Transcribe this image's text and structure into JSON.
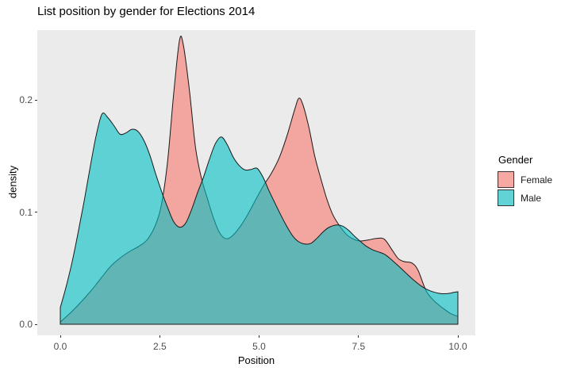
{
  "title": "List position by gender for Elections 2014",
  "chart_data": {
    "type": "area",
    "subtype": "overlapping-density",
    "title": "List position by gender for Elections 2014",
    "xlabel": "Position",
    "ylabel": "density",
    "xlim": [
      0,
      10
    ],
    "ylim": [
      0,
      0.262
    ],
    "grid": false,
    "panel_background": "#EBEBEB",
    "outline_color": "#1a1a1a",
    "fill_alpha": 0.6,
    "legend_position": "right",
    "legend_title": "Gender",
    "x_ticks": {
      "values": [
        0,
        2.5,
        5,
        7.5,
        10
      ],
      "labels": [
        "0.0",
        "2.5",
        "5.0",
        "7.5",
        "10.0"
      ]
    },
    "y_ticks": {
      "values": [
        0,
        0.1,
        0.2
      ],
      "labels": [
        "0.0",
        "0.1",
        "0.2"
      ]
    },
    "series": [
      {
        "name": "Female",
        "color": "#F8766D",
        "points": [
          [
            0,
            0.002
          ],
          [
            0.25,
            0.01
          ],
          [
            0.5,
            0.019
          ],
          [
            0.75,
            0.029
          ],
          [
            1.0,
            0.04
          ],
          [
            1.25,
            0.051
          ],
          [
            1.5,
            0.059
          ],
          [
            1.75,
            0.065
          ],
          [
            2.0,
            0.07
          ],
          [
            2.2,
            0.076
          ],
          [
            2.4,
            0.089
          ],
          [
            2.55,
            0.108
          ],
          [
            2.7,
            0.146
          ],
          [
            2.85,
            0.205
          ],
          [
            3.0,
            0.2535
          ],
          [
            3.1,
            0.248
          ],
          [
            3.25,
            0.208
          ],
          [
            3.4,
            0.158
          ],
          [
            3.55,
            0.13
          ],
          [
            3.7,
            0.112
          ],
          [
            3.85,
            0.095
          ],
          [
            4.0,
            0.082
          ],
          [
            4.15,
            0.0765
          ],
          [
            4.3,
            0.078
          ],
          [
            4.5,
            0.086
          ],
          [
            4.7,
            0.097
          ],
          [
            4.9,
            0.11
          ],
          [
            5.1,
            0.123
          ],
          [
            5.3,
            0.134
          ],
          [
            5.5,
            0.148
          ],
          [
            5.7,
            0.168
          ],
          [
            5.9,
            0.192
          ],
          [
            6.0,
            0.2015
          ],
          [
            6.1,
            0.196
          ],
          [
            6.25,
            0.176
          ],
          [
            6.4,
            0.15
          ],
          [
            6.55,
            0.13
          ],
          [
            6.7,
            0.112
          ],
          [
            6.85,
            0.098
          ],
          [
            7.0,
            0.089
          ],
          [
            7.2,
            0.08
          ],
          [
            7.4,
            0.0755
          ],
          [
            7.55,
            0.0742
          ],
          [
            7.75,
            0.0752
          ],
          [
            7.95,
            0.0765
          ],
          [
            8.15,
            0.0758
          ],
          [
            8.35,
            0.066
          ],
          [
            8.5,
            0.0585
          ],
          [
            8.65,
            0.0558
          ],
          [
            8.85,
            0.0545
          ],
          [
            9.0,
            0.048
          ],
          [
            9.2,
            0.03
          ],
          [
            9.4,
            0.021
          ],
          [
            9.6,
            0.015
          ],
          [
            9.8,
            0.01
          ],
          [
            10,
            0.007
          ]
        ]
      },
      {
        "name": "Male",
        "color": "#00BFC4",
        "points": [
          [
            0,
            0.015
          ],
          [
            0.15,
            0.034
          ],
          [
            0.3,
            0.056
          ],
          [
            0.45,
            0.082
          ],
          [
            0.6,
            0.11
          ],
          [
            0.75,
            0.14
          ],
          [
            0.9,
            0.168
          ],
          [
            1.05,
            0.1875
          ],
          [
            1.2,
            0.184
          ],
          [
            1.35,
            0.177
          ],
          [
            1.5,
            0.1695
          ],
          [
            1.65,
            0.1705
          ],
          [
            1.8,
            0.1738
          ],
          [
            1.95,
            0.172
          ],
          [
            2.1,
            0.164
          ],
          [
            2.25,
            0.151
          ],
          [
            2.4,
            0.134
          ],
          [
            2.55,
            0.118
          ],
          [
            2.7,
            0.104
          ],
          [
            2.85,
            0.0915
          ],
          [
            3.0,
            0.0865
          ],
          [
            3.15,
            0.09
          ],
          [
            3.3,
            0.102
          ],
          [
            3.45,
            0.117
          ],
          [
            3.6,
            0.131
          ],
          [
            3.75,
            0.147
          ],
          [
            3.9,
            0.161
          ],
          [
            4.05,
            0.167
          ],
          [
            4.2,
            0.16
          ],
          [
            4.35,
            0.149
          ],
          [
            4.5,
            0.1415
          ],
          [
            4.65,
            0.1375
          ],
          [
            4.8,
            0.138
          ],
          [
            4.95,
            0.139
          ],
          [
            5.1,
            0.131
          ],
          [
            5.25,
            0.119
          ],
          [
            5.4,
            0.108
          ],
          [
            5.55,
            0.097
          ],
          [
            5.7,
            0.087
          ],
          [
            5.85,
            0.0785
          ],
          [
            6.0,
            0.0735
          ],
          [
            6.15,
            0.0715
          ],
          [
            6.3,
            0.072
          ],
          [
            6.45,
            0.0765
          ],
          [
            6.6,
            0.082
          ],
          [
            6.75,
            0.0862
          ],
          [
            6.95,
            0.0885
          ],
          [
            7.1,
            0.0875
          ],
          [
            7.25,
            0.0838
          ],
          [
            7.4,
            0.0785
          ],
          [
            7.55,
            0.0738
          ],
          [
            7.7,
            0.0695
          ],
          [
            7.85,
            0.0665
          ],
          [
            8.0,
            0.0645
          ],
          [
            8.15,
            0.0625
          ],
          [
            8.3,
            0.0585
          ],
          [
            8.45,
            0.0538
          ],
          [
            8.6,
            0.0488
          ],
          [
            8.75,
            0.0438
          ],
          [
            8.9,
            0.039
          ],
          [
            9.05,
            0.0348
          ],
          [
            9.2,
            0.0315
          ],
          [
            9.35,
            0.0292
          ],
          [
            9.5,
            0.0278
          ],
          [
            9.65,
            0.0272
          ],
          [
            9.8,
            0.0276
          ],
          [
            9.9,
            0.0284
          ],
          [
            10,
            0.029
          ]
        ]
      }
    ]
  },
  "legend": {
    "title": "Gender",
    "key_background": "#F2F2F2",
    "entries": [
      {
        "label": "Female"
      },
      {
        "label": "Male"
      }
    ]
  }
}
